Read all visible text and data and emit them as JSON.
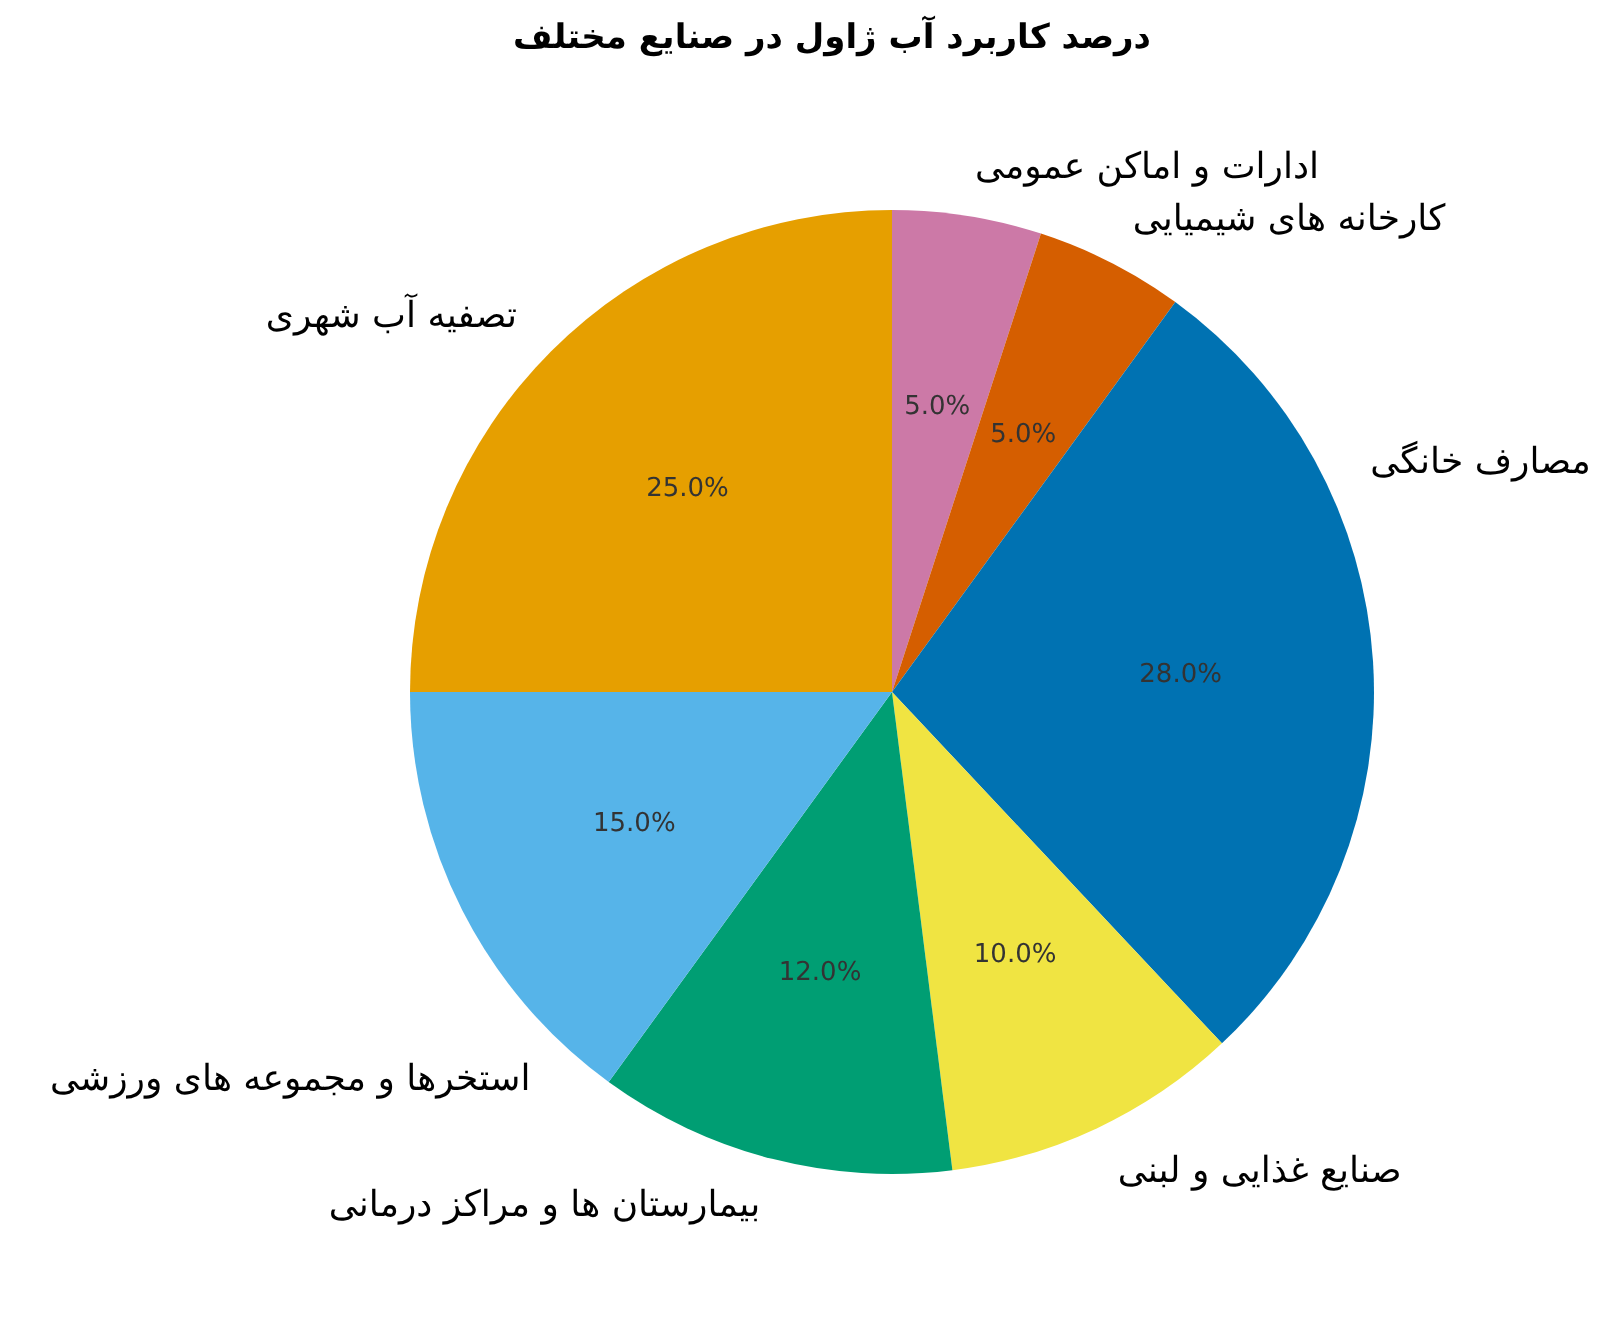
{
  "chart_data": {
    "type": "pie",
    "title": "درصد کاربرد آب ژاول در صنایع مختلف",
    "categories": [
      "ادارات و اماکن عمومی",
      "کارخانه های شیمیایی",
      "مصارف خانگی",
      "صنایع غذایی و لبنی",
      "بیمارستان ها و مراکز درمانی",
      "استخرها و مجموعه های ورزشی",
      "تصفیه آب شهری"
    ],
    "values": [
      5,
      5,
      28,
      10,
      12,
      15,
      25
    ],
    "colors": [
      "#cc79a7",
      "#d55e00",
      "#0072b2",
      "#f0e442",
      "#009e73",
      "#56b4e9",
      "#e69f00"
    ],
    "value_labels": [
      "5.0%",
      "5.0%",
      "28.0%",
      "10.0%",
      "12.0%",
      "15.0%",
      "25.0%"
    ]
  }
}
